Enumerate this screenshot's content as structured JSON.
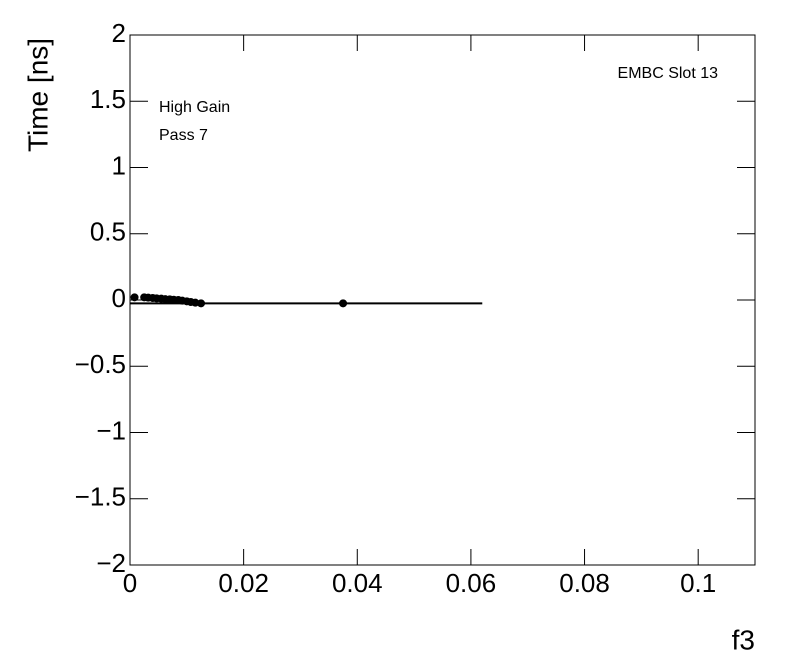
{
  "chart_data": {
    "type": "scatter",
    "y_label": "Time [ns]",
    "x_label": "f3",
    "annotations": [
      "High Gain",
      "Pass 7",
      "EMBC Slot 13"
    ],
    "color": "#000000",
    "x": [
      0.0008,
      0.0025,
      0.0032,
      0.004,
      0.0047,
      0.0055,
      0.0062,
      0.007,
      0.0077,
      0.0085,
      0.0092,
      0.01,
      0.0107,
      0.0115,
      0.0125,
      0.0375
    ],
    "values": [
      0.02,
      0.02,
      0.018,
      0.015,
      0.012,
      0.01,
      0.007,
      0.005,
      0.002,
      0,
      -0.005,
      -0.01,
      -0.015,
      -0.02,
      -0.025,
      -0.025
    ],
    "fit": {
      "x": [
        0,
        0.062
      ],
      "values": [
        -0.025,
        -0.025
      ]
    },
    "xlim": [
      0,
      0.11
    ],
    "ylim": [
      -2,
      2
    ],
    "xticks": [
      0,
      0.02,
      0.04,
      0.06,
      0.08,
      0.1
    ],
    "yticks": [
      {
        "value": -2,
        "label": "−2"
      },
      {
        "value": -1.5,
        "label": "−1.5"
      },
      {
        "value": -1,
        "label": "−1"
      },
      {
        "value": -0.5,
        "label": "−0.5"
      },
      0,
      0.5,
      1,
      1.5,
      2
    ]
  }
}
